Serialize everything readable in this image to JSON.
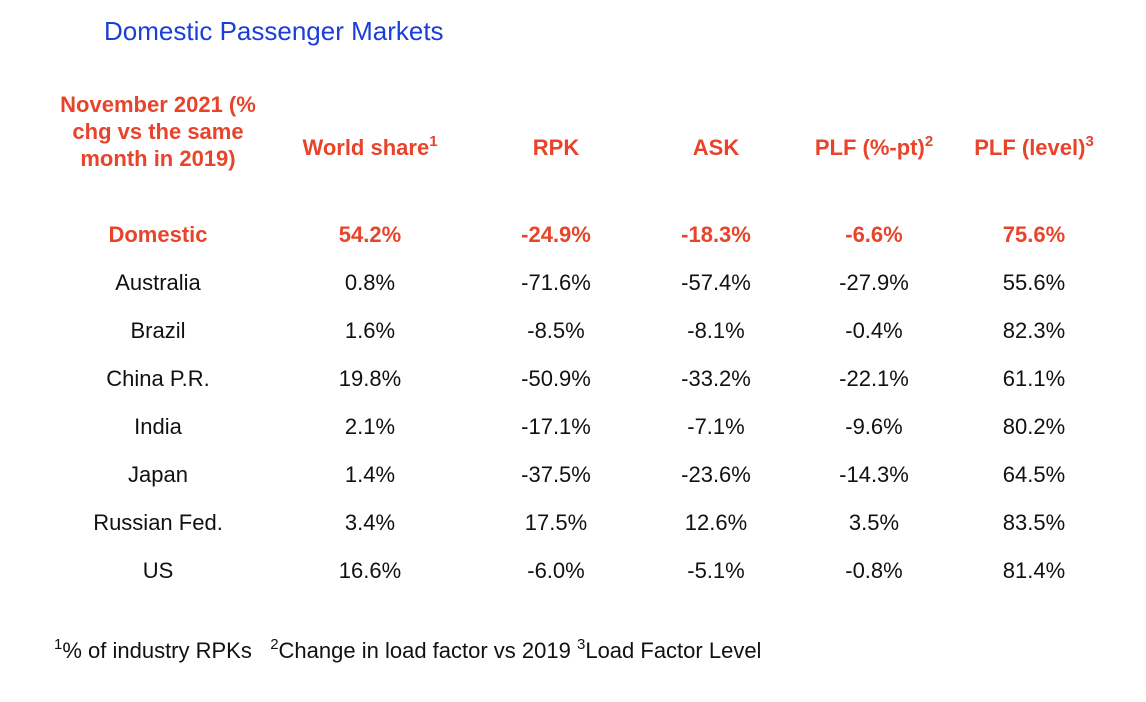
{
  "title": "Domestic Passenger Markets",
  "header": {
    "period": "November 2021 (% chg vs the same month in 2019)",
    "world_share": "World share",
    "world_share_note": "1",
    "rpk": "RPK",
    "ask": "ASK",
    "plf_pt": "PLF (%-pt)",
    "plf_pt_note": "2",
    "plf_level": "PLF (level)",
    "plf_level_note": "3"
  },
  "rows": [
    {
      "market": "Domestic",
      "world_share": "54.2%",
      "rpk": "-24.9%",
      "ask": "-18.3%",
      "plf_pt": "-6.6%",
      "plf_level": "75.6%"
    },
    {
      "market": "Australia",
      "world_share": "0.8%",
      "rpk": "-71.6%",
      "ask": "-57.4%",
      "plf_pt": "-27.9%",
      "plf_level": "55.6%"
    },
    {
      "market": "Brazil",
      "world_share": "1.6%",
      "rpk": "-8.5%",
      "ask": "-8.1%",
      "plf_pt": "-0.4%",
      "plf_level": "82.3%"
    },
    {
      "market": "China P.R.",
      "world_share": "19.8%",
      "rpk": "-50.9%",
      "ask": "-33.2%",
      "plf_pt": "-22.1%",
      "plf_level": "61.1%"
    },
    {
      "market": "India",
      "world_share": "2.1%",
      "rpk": "-17.1%",
      "ask": "-7.1%",
      "plf_pt": "-9.6%",
      "plf_level": "80.2%"
    },
    {
      "market": "Japan",
      "world_share": "1.4%",
      "rpk": "-37.5%",
      "ask": "-23.6%",
      "plf_pt": "-14.3%",
      "plf_level": "64.5%"
    },
    {
      "market": "Russian Fed.",
      "world_share": "3.4%",
      "rpk": "17.5%",
      "ask": "12.6%",
      "plf_pt": "3.5%",
      "plf_level": "83.5%"
    },
    {
      "market": "US",
      "world_share": "16.6%",
      "rpk": "-6.0%",
      "ask": "-5.1%",
      "plf_pt": "-0.8%",
      "plf_level": "81.4%"
    }
  ],
  "footnotes": [
    {
      "mark": "1",
      "text": "% of industry RPKs"
    },
    {
      "mark": "2",
      "text": "Change in load factor vs 2019"
    },
    {
      "mark": "3",
      "text": "Load Factor Level"
    }
  ],
  "colors": {
    "title": "#1a3fd6",
    "accent": "#e8442b",
    "text": "#111111"
  }
}
